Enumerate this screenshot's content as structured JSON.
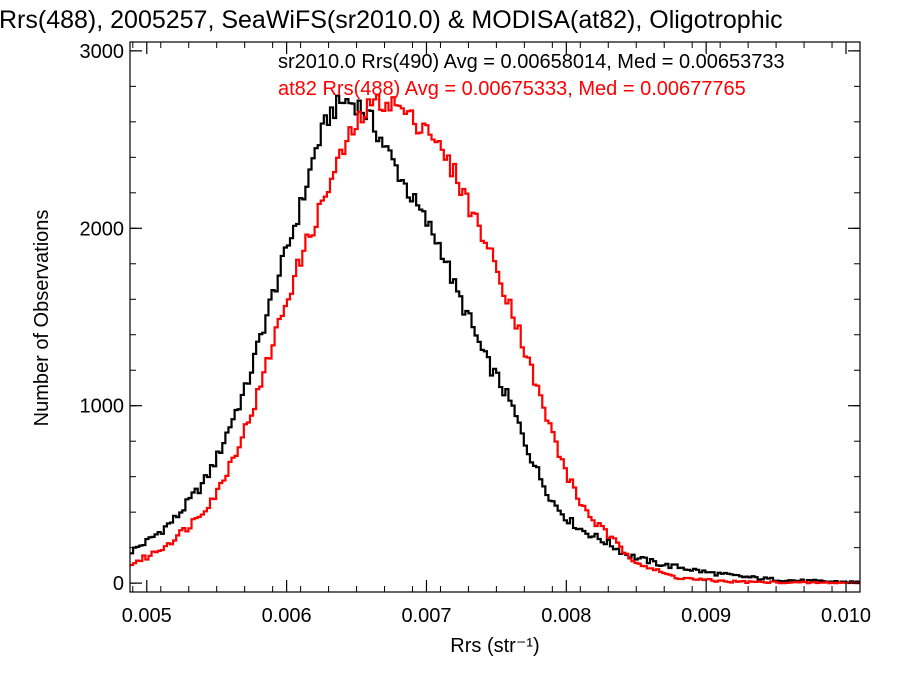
{
  "chart_data": {
    "type": "line",
    "title": "Rrs(488), 2005257, SeaWiFS(sr2010.0) & MODISA(at82), Oligotrophic",
    "xlabel": "Rrs (str⁻¹)",
    "ylabel": "Number of Observations",
    "xlim": [
      0.00488,
      0.0101
    ],
    "ylim": [
      -50,
      3050
    ],
    "x_ticks": [
      0.005,
      0.006,
      0.007,
      0.008,
      0.009,
      0.01
    ],
    "x_tick_labels": [
      "0.005",
      "0.006",
      "0.007",
      "0.008",
      "0.009",
      "0.010"
    ],
    "y_ticks": [
      0,
      1000,
      2000,
      3000
    ],
    "y_tick_labels": [
      "0",
      "1000",
      "2000",
      "3000"
    ],
    "legend_position": "top-right",
    "series": [
      {
        "name": "sr2010.0",
        "color": "#000000",
        "annotation": "sr2010.0 Rrs(490) Avg = 0.00658014, Med = 0.00653733",
        "x": [
          0.00488,
          0.005,
          0.0051,
          0.0052,
          0.0053,
          0.0054,
          0.0055,
          0.0056,
          0.0057,
          0.0058,
          0.0059,
          0.006,
          0.0061,
          0.0062,
          0.0063,
          0.0064,
          0.0065,
          0.0066,
          0.0067,
          0.0068,
          0.0069,
          0.007,
          0.0071,
          0.0072,
          0.0073,
          0.0074,
          0.0075,
          0.0076,
          0.0077,
          0.0078,
          0.0079,
          0.008,
          0.0081,
          0.0082,
          0.0083,
          0.0084,
          0.0085,
          0.0086,
          0.0087,
          0.0088,
          0.009,
          0.0092,
          0.0094,
          0.0096,
          0.0098,
          0.0101
        ],
        "y": [
          180,
          240,
          300,
          370,
          470,
          570,
          720,
          920,
          1100,
          1380,
          1650,
          1900,
          2150,
          2450,
          2650,
          2720,
          2700,
          2600,
          2450,
          2300,
          2150,
          2020,
          1880,
          1650,
          1480,
          1280,
          1150,
          1000,
          780,
          600,
          450,
          360,
          300,
          260,
          220,
          170,
          140,
          120,
          100,
          90,
          60,
          40,
          25,
          15,
          10,
          5
        ]
      },
      {
        "name": "at82",
        "color": "#ff0000",
        "annotation": "at82 Rrs(488) Avg = 0.00675333, Med = 0.00677765",
        "x": [
          0.00488,
          0.005,
          0.0051,
          0.0052,
          0.0053,
          0.0054,
          0.0055,
          0.0056,
          0.0057,
          0.0058,
          0.0059,
          0.006,
          0.0061,
          0.0062,
          0.0063,
          0.0064,
          0.0065,
          0.0066,
          0.0067,
          0.0068,
          0.0069,
          0.007,
          0.0071,
          0.0072,
          0.0073,
          0.0074,
          0.0075,
          0.0076,
          0.0077,
          0.0078,
          0.0079,
          0.008,
          0.0081,
          0.0082,
          0.0083,
          0.0084,
          0.0085,
          0.0086,
          0.0087,
          0.0088,
          0.009,
          0.0092,
          0.0094,
          0.0096,
          0.0098,
          0.0101
        ],
        "y": [
          110,
          150,
          200,
          260,
          330,
          420,
          520,
          700,
          880,
          1100,
          1380,
          1620,
          1850,
          2050,
          2250,
          2450,
          2600,
          2700,
          2720,
          2680,
          2600,
          2580,
          2420,
          2300,
          2120,
          1950,
          1750,
          1550,
          1300,
          1050,
          820,
          600,
          440,
          340,
          260,
          180,
          120,
          80,
          50,
          30,
          15,
          8,
          5,
          3,
          2,
          1
        ]
      }
    ]
  }
}
